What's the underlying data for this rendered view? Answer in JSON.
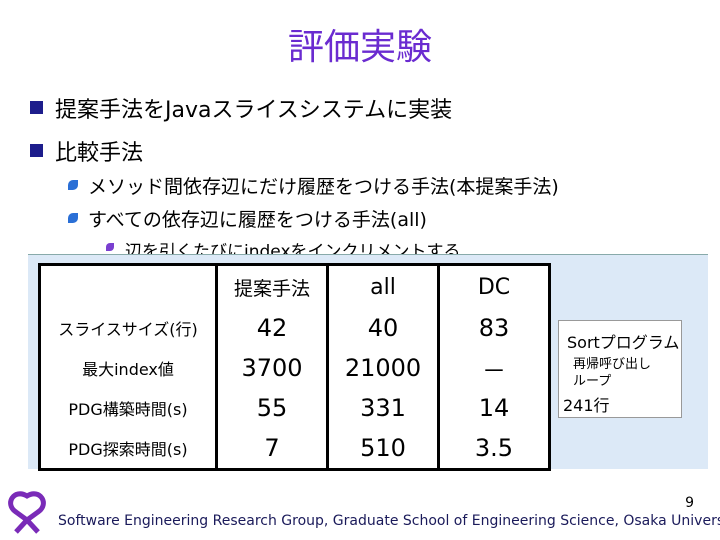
{
  "header": {
    "title": "評価実験"
  },
  "bullets": [
    "提案手法をJavaスライスシステムに実装",
    "比較手法"
  ],
  "sub_bullets": [
    "メソッド間依存辺にだけ履歴をつける手法(本提案手法)",
    "すべての依存辺に履歴をつける手法(all)"
  ],
  "hidden_note": "辺を引くたびにindexをインクリメントする",
  "table": {
    "header": [
      "提案手法",
      "all",
      "DC"
    ],
    "rows": [
      [
        "スライスサイズ(行)",
        42,
        40,
        83
      ],
      [
        "最大index値",
        3700,
        21000,
        "－"
      ],
      [
        "PDG構築時間(s)",
        55,
        331,
        14
      ],
      [
        "PDG探索時間(s)",
        7,
        510,
        3.5
      ]
    ]
  },
  "side_box": {
    "title": "Sortプログラム",
    "items": [
      "再帰呼び出し",
      "ループ"
    ],
    "lines": "241行"
  },
  "footer": {
    "page": "9",
    "text": "Software Engineering Research Group, Graduate School of Engineering Science, Osaka University"
  }
}
